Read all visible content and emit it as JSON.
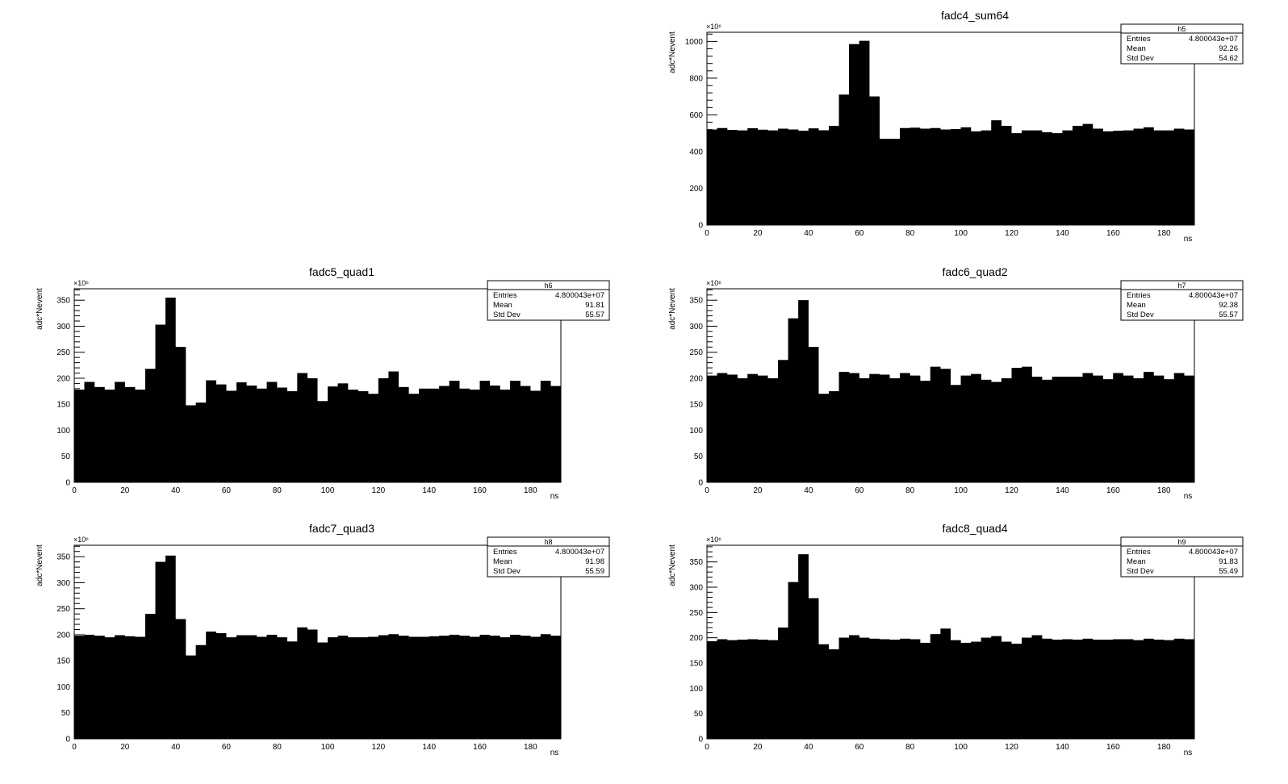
{
  "canvas": {
    "background": "#ffffff",
    "fill_color": "#000000"
  },
  "chart_data": [
    {
      "type": "bar",
      "title": "fadc4_sum64",
      "xlabel": "ns",
      "ylabel": "adc*Nevent",
      "y_multiplier": "×10⁶",
      "xlim": [
        0,
        192
      ],
      "ylim": [
        0,
        1050
      ],
      "xticks": [
        0,
        20,
        40,
        60,
        80,
        100,
        120,
        140,
        160,
        180
      ],
      "yticks": [
        0,
        200,
        400,
        600,
        800,
        1000
      ],
      "bin_width": 4,
      "values": [
        520,
        528,
        518,
        515,
        527,
        519,
        515,
        525,
        520,
        514,
        526,
        516,
        540,
        710,
        985,
        1003,
        700,
        470,
        470,
        528,
        530,
        525,
        528,
        520,
        522,
        532,
        510,
        515,
        570,
        540,
        500,
        515,
        515,
        505,
        500,
        515,
        540,
        550,
        525,
        510,
        513,
        515,
        525,
        532,
        515,
        515,
        525,
        520
      ],
      "stats": {
        "name": "h5",
        "entries_label": "Entries",
        "entries": "4.800043e+07",
        "mean_label": "Mean",
        "mean": "92.26",
        "std_label": "Std Dev",
        "std": "54.62"
      }
    },
    {
      "type": "bar",
      "title": "fadc5_quad1",
      "xlabel": "ns",
      "ylabel": "adc*Nevent",
      "y_multiplier": "×10⁶",
      "xlim": [
        0,
        192
      ],
      "ylim": [
        0,
        372
      ],
      "xticks": [
        0,
        20,
        40,
        60,
        80,
        100,
        120,
        140,
        160,
        180
      ],
      "yticks": [
        0,
        50,
        100,
        150,
        200,
        250,
        300,
        350
      ],
      "bin_width": 4,
      "values": [
        178,
        193,
        183,
        178,
        193,
        183,
        178,
        218,
        303,
        355,
        260,
        148,
        153,
        196,
        188,
        176,
        192,
        186,
        180,
        193,
        182,
        175,
        210,
        200,
        156,
        184,
        190,
        178,
        175,
        170,
        200,
        213,
        183,
        170,
        180,
        180,
        185,
        195,
        180,
        178,
        195,
        186,
        178,
        195,
        185,
        176,
        195,
        185
      ],
      "stats": {
        "name": "h6",
        "entries_label": "Entries",
        "entries": "4.800043e+07",
        "mean_label": "Mean",
        "mean": "91.81",
        "std_label": "Std Dev",
        "std": "55.57"
      }
    },
    {
      "type": "bar",
      "title": "fadc6_quad2",
      "xlabel": "ns",
      "ylabel": "adc*Nevent",
      "y_multiplier": "×10⁶",
      "xlim": [
        0,
        192
      ],
      "ylim": [
        0,
        372
      ],
      "xticks": [
        0,
        20,
        40,
        60,
        80,
        100,
        120,
        140,
        160,
        180
      ],
      "yticks": [
        0,
        50,
        100,
        150,
        200,
        250,
        300,
        350
      ],
      "bin_width": 4,
      "values": [
        205,
        210,
        207,
        200,
        208,
        205,
        200,
        235,
        315,
        350,
        260,
        170,
        175,
        212,
        210,
        200,
        208,
        207,
        200,
        210,
        205,
        195,
        222,
        218,
        187,
        205,
        208,
        197,
        193,
        200,
        220,
        222,
        203,
        197,
        203,
        203,
        203,
        210,
        205,
        198,
        210,
        205,
        200,
        212,
        205,
        198,
        210,
        205
      ],
      "stats": {
        "name": "h7",
        "entries_label": "Entries",
        "entries": "4.800043e+07",
        "mean_label": "Mean",
        "mean": "92.38",
        "std_label": "Std Dev",
        "std": "55.57"
      }
    },
    {
      "type": "bar",
      "title": "fadc7_quad3",
      "xlabel": "ns",
      "ylabel": "adc*Nevent",
      "y_multiplier": "×10⁶",
      "xlim": [
        0,
        192
      ],
      "ylim": [
        0,
        372
      ],
      "xticks": [
        0,
        20,
        40,
        60,
        80,
        100,
        120,
        140,
        160,
        180
      ],
      "yticks": [
        0,
        50,
        100,
        150,
        200,
        250,
        300,
        350
      ],
      "bin_width": 4,
      "values": [
        198,
        200,
        198,
        195,
        199,
        197,
        196,
        240,
        340,
        352,
        230,
        160,
        180,
        206,
        203,
        195,
        199,
        199,
        196,
        200,
        195,
        187,
        214,
        210,
        185,
        195,
        198,
        195,
        195,
        196,
        199,
        201,
        198,
        196,
        196,
        197,
        198,
        200,
        198,
        196,
        200,
        198,
        195,
        200,
        198,
        196,
        201,
        198
      ],
      "stats": {
        "name": "h8",
        "entries_label": "Entries",
        "entries": "4.800043e+07",
        "mean_label": "Mean",
        "mean": "91.98",
        "std_label": "Std Dev",
        "std": "55.59"
      }
    },
    {
      "type": "bar",
      "title": "fadc8_quad4",
      "xlabel": "ns",
      "ylabel": "adc*Nevent",
      "y_multiplier": "×10⁶",
      "xlim": [
        0,
        192
      ],
      "ylim": [
        0,
        383
      ],
      "xticks": [
        0,
        20,
        40,
        60,
        80,
        100,
        120,
        140,
        160,
        180
      ],
      "yticks": [
        0,
        50,
        100,
        150,
        200,
        250,
        300,
        350
      ],
      "bin_width": 4,
      "values": [
        193,
        197,
        195,
        196,
        197,
        196,
        195,
        220,
        310,
        365,
        278,
        187,
        177,
        200,
        205,
        200,
        198,
        197,
        196,
        198,
        197,
        190,
        207,
        218,
        195,
        190,
        192,
        200,
        203,
        192,
        188,
        200,
        205,
        198,
        196,
        197,
        196,
        198,
        196,
        196,
        197,
        197,
        195,
        198,
        196,
        195,
        198,
        197
      ],
      "stats": {
        "name": "h9",
        "entries_label": "Entries",
        "entries": "4.800043e+07",
        "mean_label": "Mean",
        "mean": "91.83",
        "std_label": "Std Dev",
        "std": "55.49"
      }
    }
  ]
}
